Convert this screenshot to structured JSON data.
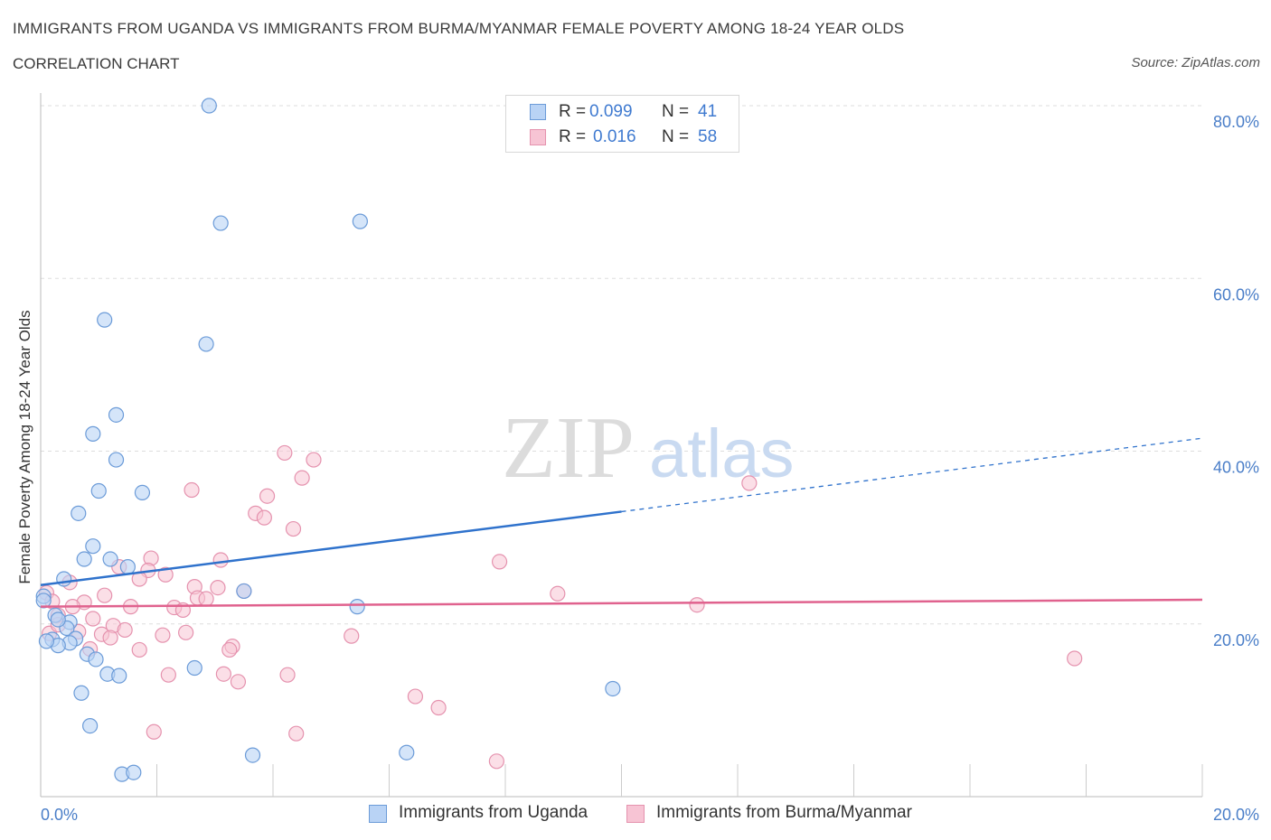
{
  "title": "IMMIGRANTS FROM UGANDA VS IMMIGRANTS FROM BURMA/MYANMAR FEMALE POVERTY AMONG 18-24 YEAR OLDS",
  "subtitle": "CORRELATION CHART",
  "source": "Source: ZipAtlas.com",
  "watermark": {
    "zip": "ZIP",
    "atlas": "atlas"
  },
  "legend": {
    "r_label": "R =",
    "n_label": "N =",
    "items": [
      {
        "r": "0.099",
        "n": "41"
      },
      {
        "r": "0.016",
        "n": "58"
      }
    ]
  },
  "bottom_legend": {
    "uganda": "Immigrants from Uganda",
    "burma": "Immigrants from Burma/Myanmar"
  },
  "colors": {
    "uganda_fill": "#b9d3f5",
    "uganda_stroke": "#6b9bd8",
    "uganda_line": "#2f72cc",
    "burma_fill": "#f7c4d4",
    "burma_stroke": "#e592ae",
    "burma_line": "#e0628e",
    "tick": "#4a7ec8",
    "grid": "#dddddd"
  },
  "chart_data": {
    "type": "scatter",
    "title": "IMMIGRANTS FROM UGANDA VS IMMIGRANTS FROM BURMA/MYANMAR FEMALE POVERTY AMONG 18-24 YEAR OLDS",
    "xlabel": "",
    "ylabel": "Female Poverty Among 18-24 Year Olds",
    "xlim": [
      0,
      20
    ],
    "ylim": [
      0,
      80
    ],
    "x_tick_labels": [
      "0.0%",
      "20.0%"
    ],
    "y_ticks": [
      20,
      40,
      60,
      80
    ],
    "y_tick_labels": [
      "20.0%",
      "40.0%",
      "60.0%",
      "80.0%"
    ],
    "series": [
      {
        "name": "Immigrants from Uganda",
        "R": 0.099,
        "N": 41,
        "trend": {
          "x": [
            0,
            20
          ],
          "y": [
            24.5,
            41.5
          ],
          "solid_until": 10
        },
        "points": [
          [
            2.9,
            80.0
          ],
          [
            3.1,
            66.4
          ],
          [
            5.5,
            66.6
          ],
          [
            1.1,
            55.2
          ],
          [
            2.85,
            52.4
          ],
          [
            1.3,
            44.2
          ],
          [
            0.9,
            42.0
          ],
          [
            1.3,
            39.0
          ],
          [
            1.0,
            35.4
          ],
          [
            1.75,
            35.2
          ],
          [
            0.65,
            32.8
          ],
          [
            0.9,
            29.0
          ],
          [
            0.75,
            27.5
          ],
          [
            1.2,
            27.5
          ],
          [
            1.5,
            26.6
          ],
          [
            0.4,
            25.2
          ],
          [
            3.5,
            23.8
          ],
          [
            5.45,
            22.0
          ],
          [
            0.25,
            21.0
          ],
          [
            0.5,
            20.2
          ],
          [
            0.45,
            19.5
          ],
          [
            0.6,
            18.3
          ],
          [
            0.2,
            18.2
          ],
          [
            0.5,
            17.8
          ],
          [
            0.3,
            17.5
          ],
          [
            0.1,
            18.0
          ],
          [
            0.8,
            16.5
          ],
          [
            0.95,
            15.9
          ],
          [
            2.65,
            14.9
          ],
          [
            1.15,
            14.2
          ],
          [
            1.35,
            14.0
          ],
          [
            0.7,
            12.0
          ],
          [
            9.85,
            12.5
          ],
          [
            0.85,
            8.2
          ],
          [
            3.65,
            4.8
          ],
          [
            6.3,
            5.1
          ],
          [
            1.4,
            2.6
          ],
          [
            1.6,
            2.8
          ],
          [
            0.05,
            23.2
          ],
          [
            0.05,
            22.7
          ],
          [
            0.3,
            20.5
          ]
        ]
      },
      {
        "name": "Immigrants from Burma/Myanmar",
        "R": 0.016,
        "N": 58,
        "trend": {
          "x": [
            0,
            20
          ],
          "y": [
            22.0,
            22.8
          ]
        },
        "points": [
          [
            4.2,
            39.8
          ],
          [
            4.7,
            39.0
          ],
          [
            4.5,
            36.9
          ],
          [
            12.2,
            36.3
          ],
          [
            2.6,
            35.5
          ],
          [
            3.9,
            34.8
          ],
          [
            3.7,
            32.8
          ],
          [
            3.85,
            32.3
          ],
          [
            4.35,
            31.0
          ],
          [
            1.9,
            27.6
          ],
          [
            3.1,
            27.4
          ],
          [
            7.9,
            27.2
          ],
          [
            1.35,
            26.6
          ],
          [
            1.85,
            26.2
          ],
          [
            2.15,
            25.7
          ],
          [
            1.7,
            25.2
          ],
          [
            0.5,
            24.8
          ],
          [
            2.65,
            24.3
          ],
          [
            3.05,
            24.2
          ],
          [
            0.1,
            23.6
          ],
          [
            1.1,
            23.3
          ],
          [
            8.9,
            23.5
          ],
          [
            3.5,
            23.8
          ],
          [
            2.7,
            23.0
          ],
          [
            2.85,
            22.9
          ],
          [
            0.75,
            22.5
          ],
          [
            0.2,
            22.6
          ],
          [
            1.55,
            22.0
          ],
          [
            2.3,
            21.9
          ],
          [
            2.45,
            21.6
          ],
          [
            11.3,
            22.2
          ],
          [
            0.3,
            21.0
          ],
          [
            0.9,
            20.6
          ],
          [
            1.25,
            19.8
          ],
          [
            0.65,
            19.1
          ],
          [
            1.45,
            19.3
          ],
          [
            2.5,
            19.0
          ],
          [
            2.1,
            18.7
          ],
          [
            1.05,
            18.8
          ],
          [
            1.2,
            18.4
          ],
          [
            5.35,
            18.6
          ],
          [
            0.15,
            18.9
          ],
          [
            3.3,
            17.4
          ],
          [
            0.85,
            17.1
          ],
          [
            1.7,
            17.0
          ],
          [
            2.2,
            14.1
          ],
          [
            3.15,
            14.2
          ],
          [
            3.4,
            13.3
          ],
          [
            4.25,
            14.1
          ],
          [
            3.25,
            17.0
          ],
          [
            6.45,
            11.6
          ],
          [
            6.85,
            10.3
          ],
          [
            17.8,
            16.0
          ],
          [
            1.95,
            7.5
          ],
          [
            4.4,
            7.3
          ],
          [
            7.85,
            4.1
          ],
          [
            0.3,
            19.9
          ],
          [
            0.55,
            22.0
          ]
        ]
      }
    ]
  }
}
